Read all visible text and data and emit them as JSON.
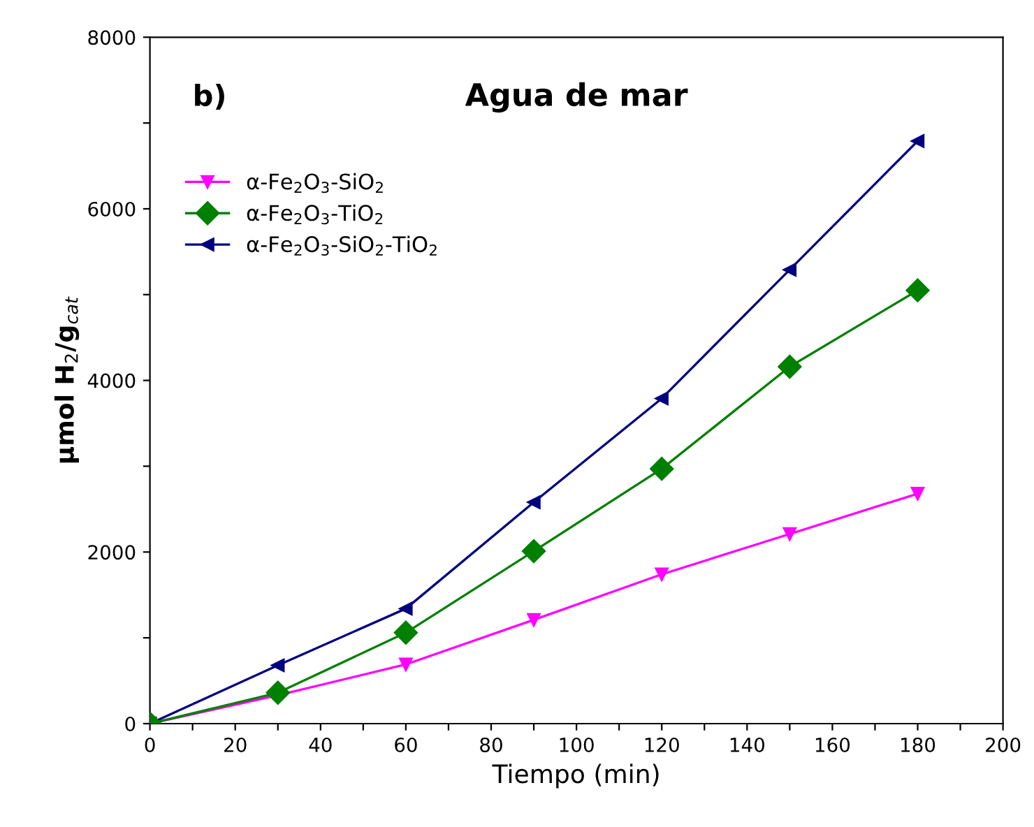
{
  "chart_data": {
    "type": "line",
    "title": "Agua de mar",
    "xlabel": "Tiempo (min)",
    "ylabel": "μmol H$_{2}$/g$_{cat}$",
    "annotations": [
      "b)"
    ],
    "x": [
      0,
      30,
      60,
      90,
      120,
      150,
      180
    ],
    "series": [
      {
        "name": "α-Fe$_{2}$O$_{3}$-SiO$_{2}$",
        "color": "#ff00ff",
        "marker": "triangle-down",
        "values": [
          0,
          330,
          690,
          1210,
          1740,
          2210,
          2680
        ]
      },
      {
        "name": "α-Fe$_{2}$O$_{3}$-TiO$_{2}$",
        "color": "#008000",
        "marker": "diamond",
        "values": [
          0,
          360,
          1060,
          2010,
          2970,
          4160,
          5050
        ]
      },
      {
        "name": "α-Fe$_{2}$O$_{3}$-SiO$_{2}$-TiO$_{2}$",
        "color": "#000080",
        "marker": "triangle-left",
        "values": [
          0,
          680,
          1340,
          2580,
          3790,
          5290,
          6790
        ]
      }
    ],
    "xlim": [
      0,
      200
    ],
    "ylim": [
      0,
      8000
    ],
    "xticks": [
      0,
      {
        "value": 10,
        "label": null
      },
      20,
      {
        "value": 30,
        "label": null
      },
      40,
      {
        "value": 50,
        "label": null
      },
      60,
      {
        "value": 70,
        "label": null
      },
      80,
      {
        "value": 90,
        "label": null
      },
      100,
      {
        "value": 110,
        "label": null
      },
      120,
      {
        "value": 130,
        "label": null
      },
      140,
      {
        "value": 150,
        "label": null
      },
      160,
      {
        "value": 170,
        "label": null
      },
      180,
      {
        "value": 190,
        "label": null
      },
      200
    ],
    "yticks": [
      0,
      {
        "value": 1000,
        "label": null
      },
      2000,
      {
        "value": 3000,
        "label": null
      },
      4000,
      {
        "value": 5000,
        "label": null
      },
      6000,
      {
        "value": 7000,
        "label": null
      },
      8000
    ],
    "grid": false,
    "legend": "top left",
    "line_style": "solid"
  }
}
